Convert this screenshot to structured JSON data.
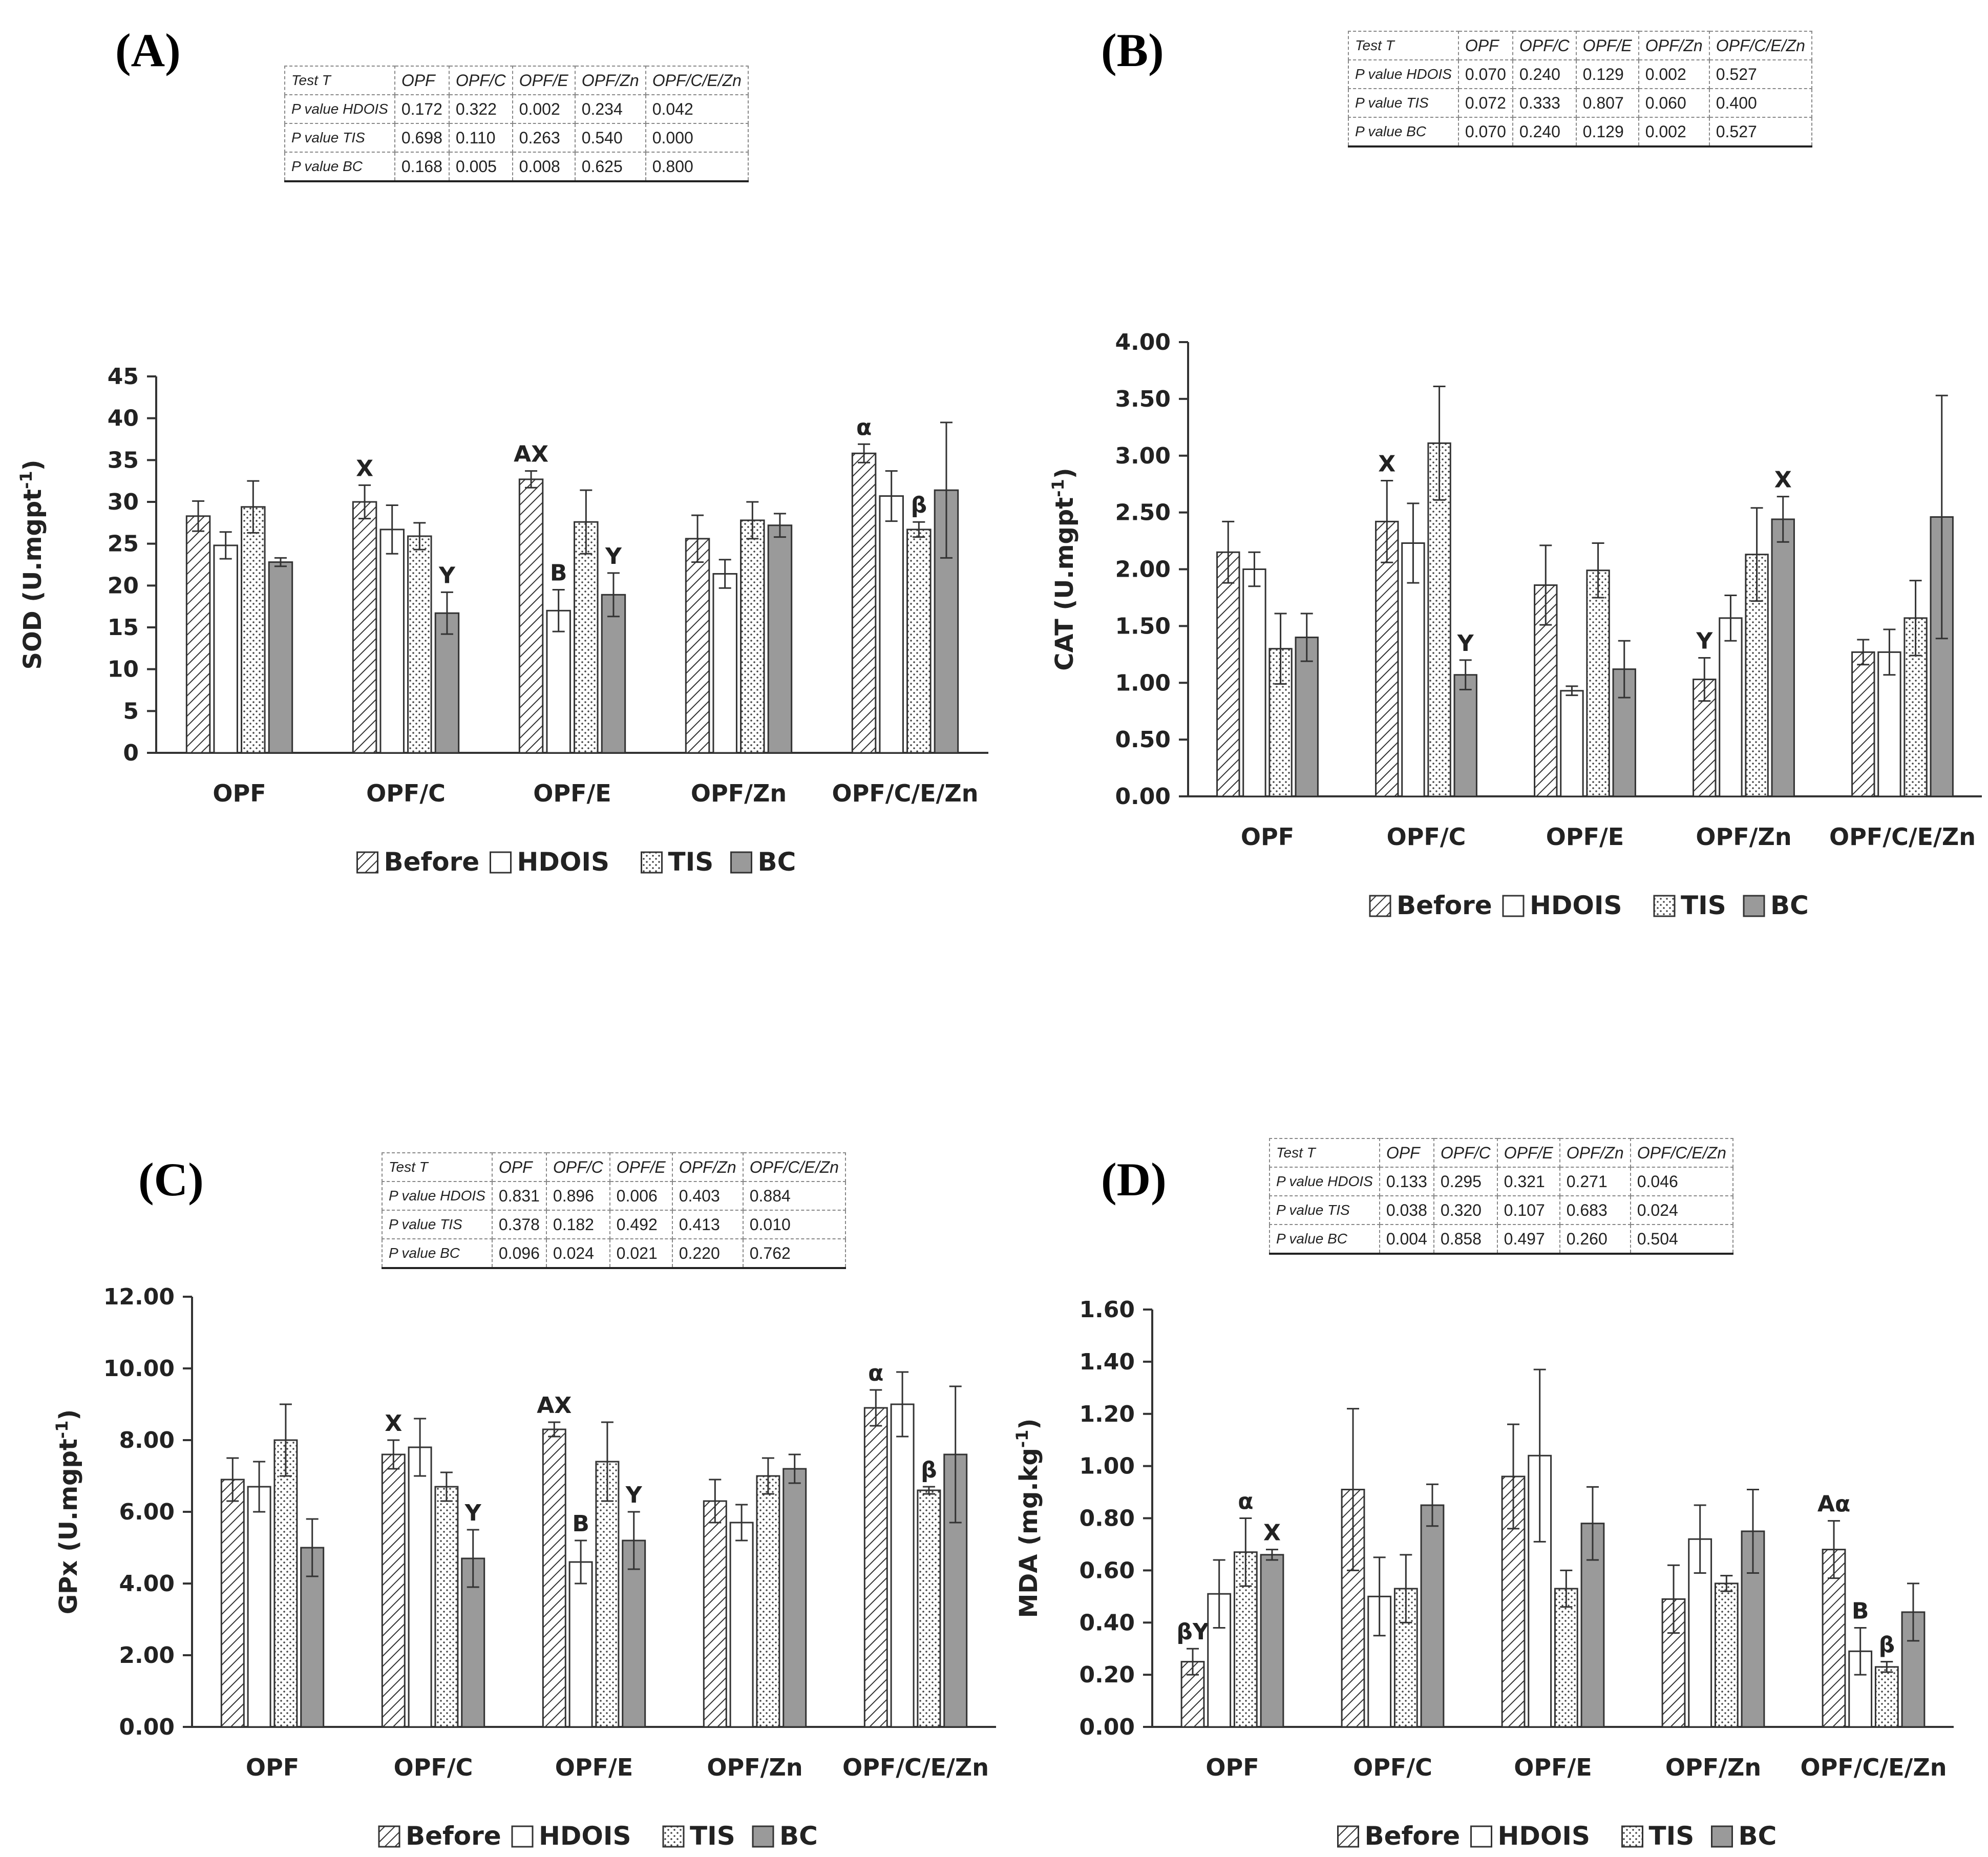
{
  "legend": [
    "Before",
    "HDOIS",
    "TIS",
    "BC"
  ],
  "panels": [
    {
      "letter": "(A)",
      "table": {
        "header": [
          "Test T",
          "OPF",
          "OPF/C",
          "OPF/E",
          "OPF/Zn",
          "OPF/C/E/Zn"
        ],
        "rows": [
          [
            "P value HDOIS",
            "0.172",
            "0.322",
            "0.002",
            "0.234",
            "0.042"
          ],
          [
            "P value TIS",
            "0.698",
            "0.110",
            "0.263",
            "0.540",
            "0.000"
          ],
          [
            "P value BC",
            "0.168",
            "0.005",
            "0.008",
            "0.625",
            "0.800"
          ]
        ]
      }
    },
    {
      "letter": "(B)",
      "table": {
        "header": [
          "Test T",
          "OPF",
          "OPF/C",
          "OPF/E",
          "OPF/Zn",
          "OPF/C/E/Zn"
        ],
        "rows": [
          [
            "P value HDOIS",
            "0.070",
            "0.240",
            "0.129",
            "0.002",
            "0.527"
          ],
          [
            "P value TIS",
            "0.072",
            "0.333",
            "0.807",
            "0.060",
            "0.400"
          ],
          [
            "P value BC",
            "0.070",
            "0.240",
            "0.129",
            "0.002",
            "0.527"
          ]
        ]
      }
    },
    {
      "letter": "(C)",
      "table": {
        "header": [
          "Test T",
          "OPF",
          "OPF/C",
          "OPF/E",
          "OPF/Zn",
          "OPF/C/E/Zn"
        ],
        "rows": [
          [
            "P value HDOIS",
            "0.831",
            "0.896",
            "0.006",
            "0.403",
            "0.884"
          ],
          [
            "P value TIS",
            "0.378",
            "0.182",
            "0.492",
            "0.413",
            "0.010"
          ],
          [
            "P value BC",
            "0.096",
            "0.024",
            "0.021",
            "0.220",
            "0.762"
          ]
        ]
      }
    },
    {
      "letter": "(D)",
      "table": {
        "header": [
          "Test T",
          "OPF",
          "OPF/C",
          "OPF/E",
          "OPF/Zn",
          "OPF/C/E/Zn"
        ],
        "rows": [
          [
            "P value HDOIS",
            "0.133",
            "0.295",
            "0.321",
            "0.271",
            "0.046"
          ],
          [
            "P value TIS",
            "0.038",
            "0.320",
            "0.107",
            "0.683",
            "0.024"
          ],
          [
            "P value BC",
            "0.004",
            "0.858",
            "0.497",
            "0.260",
            "0.504"
          ]
        ]
      }
    }
  ],
  "chart_data": [
    {
      "type": "bar",
      "ylabel": "SOD (U.mgpt-1)",
      "ylim": [
        0,
        45
      ],
      "ystep": 5,
      "decimals": 0,
      "categories": [
        "OPF",
        "OPF/C",
        "OPF/E",
        "OPF/Zn",
        "OPF/C/E/Zn"
      ],
      "series": [
        {
          "name": "Before",
          "values": [
            28.3,
            30.0,
            32.7,
            25.6,
            35.8
          ],
          "errors": [
            1.8,
            2.0,
            1.0,
            2.8,
            1.1
          ],
          "labels": [
            "",
            "X",
            "AX",
            "",
            "α"
          ]
        },
        {
          "name": "HDOIS",
          "values": [
            24.8,
            26.7,
            17.0,
            21.4,
            30.7
          ],
          "errors": [
            1.6,
            2.9,
            2.5,
            1.7,
            3.0
          ],
          "labels": [
            "",
            "",
            "B",
            "",
            ""
          ]
        },
        {
          "name": "TIS",
          "values": [
            29.4,
            25.9,
            27.6,
            27.8,
            26.7
          ],
          "errors": [
            3.1,
            1.6,
            3.8,
            2.2,
            0.9
          ],
          "labels": [
            "",
            "",
            "",
            "",
            "β"
          ]
        },
        {
          "name": "BC",
          "values": [
            22.8,
            16.7,
            18.9,
            27.2,
            31.4
          ],
          "errors": [
            0.5,
            2.5,
            2.6,
            1.4,
            8.1
          ],
          "labels": [
            "",
            "Y",
            "Y",
            "",
            ""
          ]
        }
      ]
    },
    {
      "type": "bar",
      "ylabel": "CAT (U.mgpt-1)",
      "ylim": [
        0,
        4
      ],
      "ystep": 0.5,
      "decimals": 2,
      "categories": [
        "OPF",
        "OPF/C",
        "OPF/E",
        "OPF/Zn",
        "OPF/C/E/Zn"
      ],
      "series": [
        {
          "name": "Before",
          "values": [
            2.15,
            2.42,
            1.86,
            1.03,
            1.27
          ],
          "errors": [
            0.27,
            0.36,
            0.35,
            0.19,
            0.11
          ],
          "labels": [
            "",
            "X",
            "",
            "Y",
            ""
          ]
        },
        {
          "name": "HDOIS",
          "values": [
            2.0,
            2.23,
            0.93,
            1.57,
            1.27
          ],
          "errors": [
            0.15,
            0.35,
            0.04,
            0.2,
            0.2
          ],
          "labels": [
            "",
            "",
            "",
            "",
            ""
          ]
        },
        {
          "name": "TIS",
          "values": [
            1.3,
            3.11,
            1.99,
            2.13,
            1.57
          ],
          "errors": [
            0.31,
            0.5,
            0.24,
            0.41,
            0.33
          ],
          "labels": [
            "",
            "",
            "",
            "",
            ""
          ]
        },
        {
          "name": "BC",
          "values": [
            1.4,
            1.07,
            1.12,
            2.44,
            2.46
          ],
          "errors": [
            0.21,
            0.13,
            0.25,
            0.2,
            1.07
          ],
          "labels": [
            "",
            "Y",
            "",
            "X",
            ""
          ]
        }
      ]
    },
    {
      "type": "bar",
      "ylabel": "GPx (U.mgpt-1)",
      "ylim": [
        0,
        12
      ],
      "ystep": 2,
      "decimals": 2,
      "categories": [
        "OPF",
        "OPF/C",
        "OPF/E",
        "OPF/Zn",
        "OPF/C/E/Zn"
      ],
      "series": [
        {
          "name": "Before",
          "values": [
            6.9,
            7.6,
            8.3,
            6.3,
            8.9
          ],
          "errors": [
            0.6,
            0.4,
            0.2,
            0.6,
            0.5
          ],
          "labels": [
            "",
            "X",
            "AX",
            "",
            "α"
          ]
        },
        {
          "name": "HDOIS",
          "values": [
            6.7,
            7.8,
            4.6,
            5.7,
            9.0
          ],
          "errors": [
            0.7,
            0.8,
            0.6,
            0.5,
            0.9
          ],
          "labels": [
            "",
            "",
            "B",
            "",
            ""
          ]
        },
        {
          "name": "TIS",
          "values": [
            8.0,
            6.7,
            7.4,
            7.0,
            6.6
          ],
          "errors": [
            1.0,
            0.4,
            1.1,
            0.5,
            0.1
          ],
          "labels": [
            "",
            "",
            "",
            "",
            "β"
          ]
        },
        {
          "name": "BC",
          "values": [
            5.0,
            4.7,
            5.2,
            7.2,
            7.6
          ],
          "errors": [
            0.8,
            0.8,
            0.8,
            0.4,
            1.9
          ],
          "labels": [
            "",
            "Y",
            "Y",
            "",
            ""
          ]
        }
      ]
    },
    {
      "type": "bar",
      "ylabel": "MDA (mg.kg-1)",
      "ylim": [
        0,
        1.6
      ],
      "ystep": 0.2,
      "decimals": 2,
      "categories": [
        "OPF",
        "OPF/C",
        "OPF/E",
        "OPF/Zn",
        "OPF/C/E/Zn"
      ],
      "series": [
        {
          "name": "Before",
          "values": [
            0.25,
            0.91,
            0.96,
            0.49,
            0.68
          ],
          "errors": [
            0.05,
            0.31,
            0.2,
            0.13,
            0.11
          ],
          "labels": [
            "βY",
            "",
            "",
            "",
            "Aα"
          ]
        },
        {
          "name": "HDOIS",
          "values": [
            0.51,
            0.5,
            1.04,
            0.72,
            0.29
          ],
          "errors": [
            0.13,
            0.15,
            0.33,
            0.13,
            0.09
          ],
          "labels": [
            "",
            "",
            "",
            "",
            "B"
          ]
        },
        {
          "name": "TIS",
          "values": [
            0.67,
            0.53,
            0.53,
            0.55,
            0.23
          ],
          "errors": [
            0.13,
            0.13,
            0.07,
            0.03,
            0.02
          ],
          "labels": [
            "α",
            "",
            "",
            "",
            "β"
          ]
        },
        {
          "name": "BC",
          "values": [
            0.66,
            0.85,
            0.78,
            0.75,
            0.44
          ],
          "errors": [
            0.02,
            0.08,
            0.14,
            0.16,
            0.11
          ],
          "labels": [
            "X",
            "",
            "",
            "",
            ""
          ]
        }
      ]
    }
  ]
}
